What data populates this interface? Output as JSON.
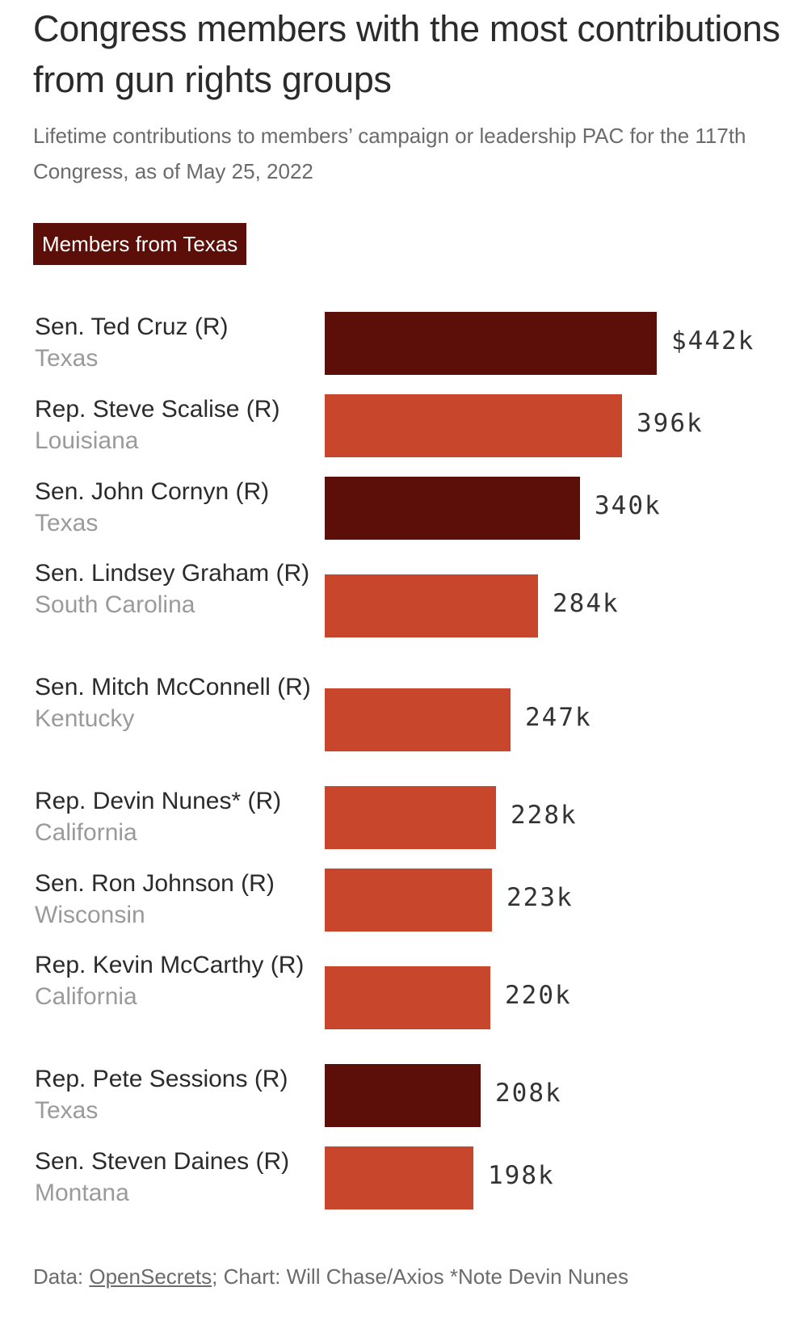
{
  "colors": {
    "texas": "#5c0e08",
    "other": "#c8472c"
  },
  "legend": {
    "label": "Members from Texas"
  },
  "source": {
    "prefix": "Data: ",
    "link": "OpenSecrets",
    "suffix": "; Chart: Will Chase/Axios *Note Devin Nunes"
  },
  "chart_data": {
    "type": "bar",
    "orientation": "horizontal",
    "title": "Congress members with the most contributions from gun rights groups",
    "subtitle": "Lifetime contributions to members’ campaign or leadership PAC for the 117th Congress, as of May 25, 2022",
    "xlim": [
      0,
      442
    ],
    "units": "thousands of dollars",
    "grid": false,
    "rows": [
      {
        "name": "Sen. Ted Cruz (R)",
        "state": "Texas",
        "value": 442,
        "label": "$442k",
        "texas": true
      },
      {
        "name": "Rep. Steve Scalise (R)",
        "state": "Louisiana",
        "value": 396,
        "label": "396k",
        "texas": false
      },
      {
        "name": "Sen. John Cornyn (R)",
        "state": "Texas",
        "value": 340,
        "label": "340k",
        "texas": true
      },
      {
        "name": "Sen. Lindsey Graham (R)",
        "state": "South Carolina",
        "value": 284,
        "label": "284k",
        "texas": false
      },
      {
        "name": "Sen. Mitch McConnell (R)",
        "state": "Kentucky",
        "value": 247,
        "label": "247k",
        "texas": false
      },
      {
        "name": "Rep. Devin Nunes* (R)",
        "state": "California",
        "value": 228,
        "label": "228k",
        "texas": false
      },
      {
        "name": "Sen. Ron Johnson (R)",
        "state": "Wisconsin",
        "value": 223,
        "label": "223k",
        "texas": false
      },
      {
        "name": "Rep. Kevin McCarthy (R)",
        "state": "California",
        "value": 220,
        "label": "220k",
        "texas": false
      },
      {
        "name": "Rep. Pete Sessions (R)",
        "state": "Texas",
        "value": 208,
        "label": "208k",
        "texas": true
      },
      {
        "name": "Sen. Steven Daines (R)",
        "state": "Montana",
        "value": 198,
        "label": "198k",
        "texas": false
      }
    ]
  }
}
